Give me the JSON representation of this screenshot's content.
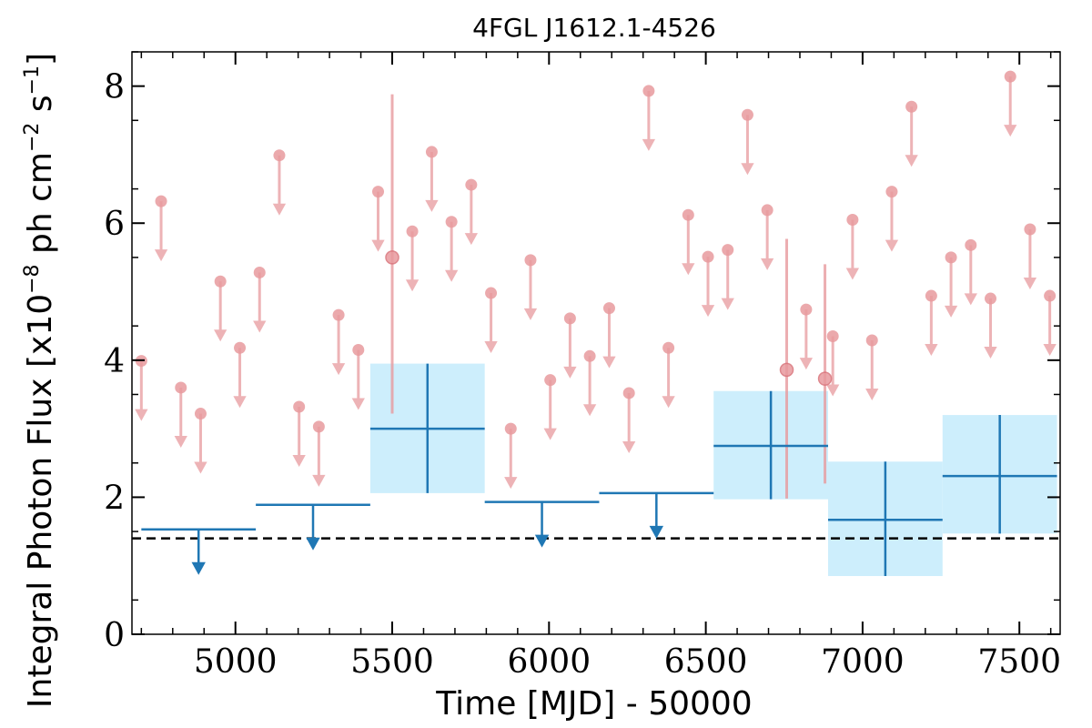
{
  "chart_data": {
    "type": "scatter",
    "title": "4FGL J1612.1-4526",
    "xlabel": "Time [MJD] - 50000",
    "ylabel": "Integral Photon Flux [x10",
    "ylabel_exp1": "−8",
    "ylabel_mid": " ph cm",
    "ylabel_exp2": "−2",
    "ylabel_mid2": " s",
    "ylabel_exp3": "−1",
    "ylabel_end": "]",
    "xlim": [
      4670,
      7630
    ],
    "ylim": [
      0,
      8.5
    ],
    "xticks": [
      5000,
      5500,
      6000,
      6500,
      7000,
      7500
    ],
    "yticks": [
      0,
      2,
      4,
      6,
      8
    ],
    "grid": false,
    "baseline": 1.4,
    "colors": {
      "short_bins": "#e89a9e",
      "long_bins": "#1f77b4",
      "long_band": "#cdeefc",
      "baseline": "#000000"
    },
    "short_upper_limits": [
      {
        "x": 4700,
        "y": 3.99
      },
      {
        "x": 4763,
        "y": 6.32
      },
      {
        "x": 4826,
        "y": 3.6
      },
      {
        "x": 4889,
        "y": 3.22
      },
      {
        "x": 4952,
        "y": 5.15
      },
      {
        "x": 5014,
        "y": 4.18
      },
      {
        "x": 5077,
        "y": 5.28
      },
      {
        "x": 5140,
        "y": 6.99
      },
      {
        "x": 5203,
        "y": 3.32
      },
      {
        "x": 5266,
        "y": 3.03
      },
      {
        "x": 5329,
        "y": 4.66
      },
      {
        "x": 5392,
        "y": 4.15
      },
      {
        "x": 5455,
        "y": 6.46
      },
      {
        "x": 5564,
        "y": 5.88
      },
      {
        "x": 5626,
        "y": 7.04
      },
      {
        "x": 5689,
        "y": 6.02
      },
      {
        "x": 5752,
        "y": 6.56
      },
      {
        "x": 5815,
        "y": 4.98
      },
      {
        "x": 5878,
        "y": 3.0
      },
      {
        "x": 5941,
        "y": 5.46
      },
      {
        "x": 6004,
        "y": 3.71
      },
      {
        "x": 6067,
        "y": 4.61
      },
      {
        "x": 6130,
        "y": 4.06
      },
      {
        "x": 6192,
        "y": 4.76
      },
      {
        "x": 6255,
        "y": 3.52
      },
      {
        "x": 6318,
        "y": 7.93
      },
      {
        "x": 6381,
        "y": 4.18
      },
      {
        "x": 6444,
        "y": 6.12
      },
      {
        "x": 6507,
        "y": 5.51
      },
      {
        "x": 6570,
        "y": 5.61
      },
      {
        "x": 6633,
        "y": 7.58
      },
      {
        "x": 6696,
        "y": 6.19
      },
      {
        "x": 6820,
        "y": 4.74
      },
      {
        "x": 6905,
        "y": 4.35
      },
      {
        "x": 6968,
        "y": 6.05
      },
      {
        "x": 7030,
        "y": 4.29
      },
      {
        "x": 7093,
        "y": 6.46
      },
      {
        "x": 7156,
        "y": 7.7
      },
      {
        "x": 7219,
        "y": 4.94
      },
      {
        "x": 7282,
        "y": 5.5
      },
      {
        "x": 7345,
        "y": 5.68
      },
      {
        "x": 7408,
        "y": 4.9
      },
      {
        "x": 7471,
        "y": 8.14
      },
      {
        "x": 7534,
        "y": 5.91
      },
      {
        "x": 7597,
        "y": 4.94
      }
    ],
    "short_detections": [
      {
        "x": 5500,
        "y": 5.5,
        "y_low": 3.22,
        "y_high": 7.88
      },
      {
        "x": 6758,
        "y": 3.86,
        "y_low": 1.98,
        "y_high": 5.77
      },
      {
        "x": 6880,
        "y": 3.73,
        "y_low": 2.2,
        "y_high": 5.4
      }
    ],
    "long_upper_limits": [
      {
        "x_start": 4700,
        "x_end": 5065,
        "y": 1.53
      },
      {
        "x_start": 5065,
        "x_end": 5430,
        "y": 1.89
      },
      {
        "x_start": 5795,
        "x_end": 6160,
        "y": 1.93
      },
      {
        "x_start": 6160,
        "x_end": 6525,
        "y": 2.06
      }
    ],
    "long_detections": [
      {
        "x_start": 5430,
        "x_end": 5795,
        "y": 3.0,
        "y_low": 2.06,
        "y_high": 3.95
      },
      {
        "x_start": 6525,
        "x_end": 6890,
        "y": 2.75,
        "y_low": 1.97,
        "y_high": 3.55
      },
      {
        "x_start": 6890,
        "x_end": 7255,
        "y": 1.67,
        "y_low": 0.85,
        "y_high": 2.52
      },
      {
        "x_start": 7255,
        "x_end": 7620,
        "y": 2.31,
        "y_low": 1.47,
        "y_high": 3.2
      }
    ]
  }
}
